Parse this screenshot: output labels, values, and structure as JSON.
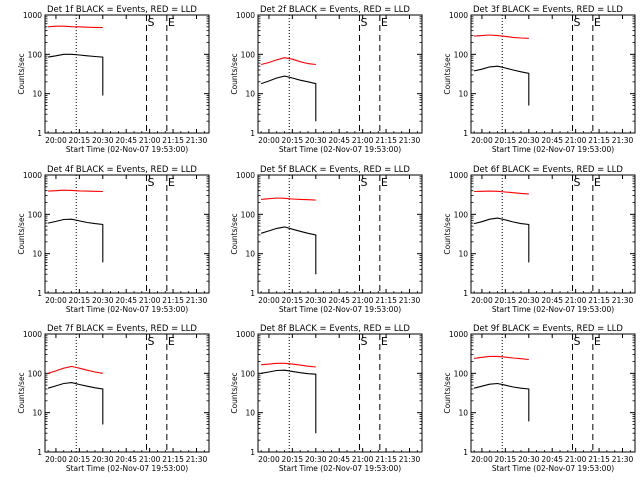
{
  "colors": {
    "events": "#000000",
    "lld": "#ff0000",
    "axes": "#000000"
  },
  "chart_data": [
    {
      "type": "line",
      "title": "Det 1f BLACK = Events, RED = LLD",
      "xlabel": "Start Time (02-Nov-07 19:53:00)",
      "ylabel": "Counts/sec",
      "xlim": [
        "19:53",
        "21:38"
      ],
      "ylim": [
        1,
        1000
      ],
      "yscale": "log",
      "xticks": [
        "20:00",
        "20:15",
        "20:30",
        "20:45",
        "21:00",
        "21:15",
        "21:30"
      ],
      "yticks": [
        "1",
        "10",
        "100",
        "1000"
      ],
      "markers": [
        {
          "time": "20:13",
          "style": "dotted",
          "label": ""
        },
        {
          "time": "20:58",
          "style": "dashed",
          "label": "S"
        },
        {
          "time": "21:11",
          "style": "dashed",
          "label": "E"
        }
      ],
      "series": [
        {
          "color": "#ff0000",
          "x": [
            "19:55",
            "20:00",
            "20:05",
            "20:10",
            "20:15",
            "20:20",
            "20:25",
            "20:30"
          ],
          "y": [
            500,
            520,
            520,
            505,
            500,
            490,
            485,
            480
          ]
        },
        {
          "color": "#000000",
          "x": [
            "19:55",
            "20:00",
            "20:05",
            "20:10",
            "20:15",
            "20:20",
            "20:25",
            "20:30",
            "20:30"
          ],
          "y": [
            85,
            92,
            100,
            100,
            96,
            92,
            88,
            85,
            9
          ]
        }
      ]
    },
    {
      "type": "line",
      "title": "Det 2f BLACK = Events, RED = LLD",
      "xlabel": "Start Time (02-Nov-07 19:53:00)",
      "ylabel": "Counts/sec",
      "xlim": [
        "19:53",
        "21:38"
      ],
      "ylim": [
        1,
        1000
      ],
      "yscale": "log",
      "xticks": [
        "20:00",
        "20:15",
        "20:30",
        "20:45",
        "21:00",
        "21:15",
        "21:30"
      ],
      "yticks": [
        "1",
        "10",
        "100",
        "1000"
      ],
      "markers": [
        {
          "time": "20:13",
          "style": "dotted",
          "label": ""
        },
        {
          "time": "20:58",
          "style": "dashed",
          "label": "S"
        },
        {
          "time": "21:11",
          "style": "dashed",
          "label": "E"
        }
      ],
      "series": [
        {
          "color": "#ff0000",
          "x": [
            "19:55",
            "20:00",
            "20:05",
            "20:10",
            "20:15",
            "20:20",
            "20:25",
            "20:30"
          ],
          "y": [
            55,
            62,
            72,
            82,
            75,
            65,
            58,
            55
          ]
        },
        {
          "color": "#000000",
          "x": [
            "19:55",
            "20:00",
            "20:05",
            "20:10",
            "20:15",
            "20:20",
            "20:25",
            "20:30",
            "20:30"
          ],
          "y": [
            18,
            21,
            25,
            28,
            25,
            22,
            20,
            18,
            2
          ]
        }
      ]
    },
    {
      "type": "line",
      "title": "Det 3f BLACK = Events, RED = LLD",
      "xlabel": "Start Time (02-Nov-07 19:53:00)",
      "ylabel": "Counts/sec",
      "xlim": [
        "19:53",
        "21:38"
      ],
      "ylim": [
        1,
        1000
      ],
      "yscale": "log",
      "xticks": [
        "20:00",
        "20:15",
        "20:30",
        "20:45",
        "21:00",
        "21:15",
        "21:30"
      ],
      "yticks": [
        "1",
        "10",
        "100",
        "1000"
      ],
      "markers": [
        {
          "time": "20:13",
          "style": "dotted",
          "label": ""
        },
        {
          "time": "20:58",
          "style": "dashed",
          "label": "S"
        },
        {
          "time": "21:11",
          "style": "dashed",
          "label": "E"
        }
      ],
      "series": [
        {
          "color": "#ff0000",
          "x": [
            "19:55",
            "20:00",
            "20:05",
            "20:10",
            "20:15",
            "20:20",
            "20:25",
            "20:30"
          ],
          "y": [
            290,
            300,
            310,
            300,
            285,
            270,
            260,
            255
          ]
        },
        {
          "color": "#000000",
          "x": [
            "19:55",
            "20:00",
            "20:05",
            "20:10",
            "20:15",
            "20:20",
            "20:25",
            "20:30",
            "20:30"
          ],
          "y": [
            38,
            42,
            48,
            50,
            45,
            40,
            36,
            33,
            5
          ]
        }
      ]
    },
    {
      "type": "line",
      "title": "Det 4f BLACK = Events, RED = LLD",
      "xlabel": "Start Time (02-Nov-07 19:53:00)",
      "ylabel": "Counts/sec",
      "xlim": [
        "19:53",
        "21:38"
      ],
      "ylim": [
        1,
        1000
      ],
      "yscale": "log",
      "xticks": [
        "20:00",
        "20:15",
        "20:30",
        "20:45",
        "21:00",
        "21:15",
        "21:30"
      ],
      "yticks": [
        "1",
        "10",
        "100",
        "1000"
      ],
      "markers": [
        {
          "time": "20:13",
          "style": "dotted",
          "label": ""
        },
        {
          "time": "20:58",
          "style": "dashed",
          "label": "S"
        },
        {
          "time": "21:11",
          "style": "dashed",
          "label": "E"
        }
      ],
      "series": [
        {
          "color": "#ff0000",
          "x": [
            "19:55",
            "20:00",
            "20:05",
            "20:10",
            "20:15",
            "20:20",
            "20:25",
            "20:30"
          ],
          "y": [
            390,
            400,
            410,
            405,
            395,
            390,
            385,
            380
          ]
        },
        {
          "color": "#000000",
          "x": [
            "19:55",
            "20:00",
            "20:05",
            "20:10",
            "20:15",
            "20:20",
            "20:25",
            "20:30",
            "20:30"
          ],
          "y": [
            60,
            66,
            74,
            75,
            68,
            62,
            58,
            55,
            6
          ]
        }
      ]
    },
    {
      "type": "line",
      "title": "Det 5f BLACK = Events, RED = LLD",
      "xlabel": "Start Time (02-Nov-07 19:53:00)",
      "ylabel": "Counts/sec",
      "xlim": [
        "19:53",
        "21:38"
      ],
      "ylim": [
        1,
        1000
      ],
      "yscale": "log",
      "xticks": [
        "20:00",
        "20:15",
        "20:30",
        "20:45",
        "21:00",
        "21:15",
        "21:30"
      ],
      "yticks": [
        "1",
        "10",
        "100",
        "1000"
      ],
      "markers": [
        {
          "time": "20:13",
          "style": "dotted",
          "label": ""
        },
        {
          "time": "20:58",
          "style": "dashed",
          "label": "S"
        },
        {
          "time": "21:11",
          "style": "dashed",
          "label": "E"
        }
      ],
      "series": [
        {
          "color": "#ff0000",
          "x": [
            "19:55",
            "20:00",
            "20:05",
            "20:10",
            "20:15",
            "20:20",
            "20:25",
            "20:30"
          ],
          "y": [
            240,
            250,
            260,
            255,
            245,
            240,
            235,
            230
          ]
        },
        {
          "color": "#000000",
          "x": [
            "19:55",
            "20:00",
            "20:05",
            "20:10",
            "20:15",
            "20:20",
            "20:25",
            "20:30",
            "20:30"
          ],
          "y": [
            33,
            38,
            44,
            48,
            42,
            37,
            33,
            30,
            3
          ]
        }
      ]
    },
    {
      "type": "line",
      "title": "Det 6f BLACK = Events, RED = LLD",
      "xlabel": "Start Time (02-Nov-07 19:53:00)",
      "ylabel": "Counts/sec",
      "xlim": [
        "19:53",
        "21:38"
      ],
      "ylim": [
        1,
        1000
      ],
      "yscale": "log",
      "xticks": [
        "20:00",
        "20:15",
        "20:30",
        "20:45",
        "21:00",
        "21:15",
        "21:30"
      ],
      "yticks": [
        "1",
        "10",
        "100",
        "1000"
      ],
      "markers": [
        {
          "time": "20:13",
          "style": "dotted",
          "label": ""
        },
        {
          "time": "20:58",
          "style": "dashed",
          "label": "S"
        },
        {
          "time": "21:11",
          "style": "dashed",
          "label": "E"
        }
      ],
      "series": [
        {
          "color": "#ff0000",
          "x": [
            "19:55",
            "20:00",
            "20:05",
            "20:10",
            "20:15",
            "20:20",
            "20:25",
            "20:30"
          ],
          "y": [
            380,
            385,
            390,
            385,
            370,
            355,
            340,
            330
          ]
        },
        {
          "color": "#000000",
          "x": [
            "19:55",
            "20:00",
            "20:05",
            "20:10",
            "20:15",
            "20:20",
            "20:25",
            "20:30",
            "20:30"
          ],
          "y": [
            58,
            65,
            75,
            80,
            72,
            64,
            58,
            55,
            6
          ]
        }
      ]
    },
    {
      "type": "line",
      "title": "Det 7f BLACK = Events, RED = LLD",
      "xlabel": "Start Time (02-Nov-07 19:53:00)",
      "ylabel": "Counts/sec",
      "xlim": [
        "19:53",
        "21:38"
      ],
      "ylim": [
        1,
        1000
      ],
      "yscale": "log",
      "xticks": [
        "20:00",
        "20:15",
        "20:30",
        "20:45",
        "21:00",
        "21:15",
        "21:30"
      ],
      "yticks": [
        "1",
        "10",
        "100",
        "1000"
      ],
      "markers": [
        {
          "time": "20:13",
          "style": "dotted",
          "label": ""
        },
        {
          "time": "20:58",
          "style": "dashed",
          "label": "S"
        },
        {
          "time": "21:11",
          "style": "dashed",
          "label": "E"
        }
      ],
      "series": [
        {
          "color": "#ff0000",
          "x": [
            "19:55",
            "20:00",
            "20:05",
            "20:10",
            "20:15",
            "20:20",
            "20:25",
            "20:30"
          ],
          "y": [
            100,
            115,
            135,
            150,
            135,
            120,
            108,
            100
          ]
        },
        {
          "color": "#000000",
          "x": [
            "19:55",
            "20:00",
            "20:05",
            "20:10",
            "20:15",
            "20:20",
            "20:25",
            "20:30",
            "20:30"
          ],
          "y": [
            42,
            48,
            55,
            58,
            52,
            47,
            43,
            40,
            5
          ]
        }
      ]
    },
    {
      "type": "line",
      "title": "Det 8f BLACK = Events, RED = LLD",
      "xlabel": "Start Time (02-Nov-07 19:53:00)",
      "ylabel": "Counts/sec",
      "xlim": [
        "19:53",
        "21:38"
      ],
      "ylim": [
        1,
        1000
      ],
      "yscale": "log",
      "xticks": [
        "20:00",
        "20:15",
        "20:30",
        "20:45",
        "21:00",
        "21:15",
        "21:30"
      ],
      "yticks": [
        "1",
        "10",
        "100",
        "1000"
      ],
      "markers": [
        {
          "time": "20:13",
          "style": "dotted",
          "label": ""
        },
        {
          "time": "20:58",
          "style": "dashed",
          "label": "S"
        },
        {
          "time": "21:11",
          "style": "dashed",
          "label": "E"
        }
      ],
      "series": [
        {
          "color": "#ff0000",
          "x": [
            "19:55",
            "20:00",
            "20:05",
            "20:10",
            "20:15",
            "20:20",
            "20:25",
            "20:30"
          ],
          "y": [
            165,
            172,
            180,
            180,
            172,
            162,
            152,
            145
          ]
        },
        {
          "color": "#000000",
          "x": [
            "19:55",
            "20:00",
            "20:05",
            "20:10",
            "20:15",
            "20:20",
            "20:25",
            "20:30",
            "20:30"
          ],
          "y": [
            100,
            108,
            118,
            120,
            112,
            104,
            98,
            95,
            3
          ]
        }
      ]
    },
    {
      "type": "line",
      "title": "Det 9f BLACK = Events, RED = LLD",
      "xlabel": "Start Time (02-Nov-07 19:53:00)",
      "ylabel": "Counts/sec",
      "xlim": [
        "19:53",
        "21:38"
      ],
      "ylim": [
        1,
        1000
      ],
      "yscale": "log",
      "xticks": [
        "20:00",
        "20:15",
        "20:30",
        "20:45",
        "21:00",
        "21:15",
        "21:30"
      ],
      "yticks": [
        "1",
        "10",
        "100",
        "1000"
      ],
      "markers": [
        {
          "time": "20:13",
          "style": "dotted",
          "label": ""
        },
        {
          "time": "20:58",
          "style": "dashed",
          "label": "S"
        },
        {
          "time": "21:11",
          "style": "dashed",
          "label": "E"
        }
      ],
      "series": [
        {
          "color": "#ff0000",
          "x": [
            "19:55",
            "20:00",
            "20:05",
            "20:10",
            "20:15",
            "20:20",
            "20:25",
            "20:30"
          ],
          "y": [
            240,
            255,
            270,
            270,
            258,
            245,
            235,
            225
          ]
        },
        {
          "color": "#000000",
          "x": [
            "19:55",
            "20:00",
            "20:05",
            "20:10",
            "20:15",
            "20:20",
            "20:25",
            "20:30",
            "20:30"
          ],
          "y": [
            42,
            47,
            53,
            55,
            50,
            45,
            42,
            40,
            6
          ]
        }
      ]
    }
  ]
}
